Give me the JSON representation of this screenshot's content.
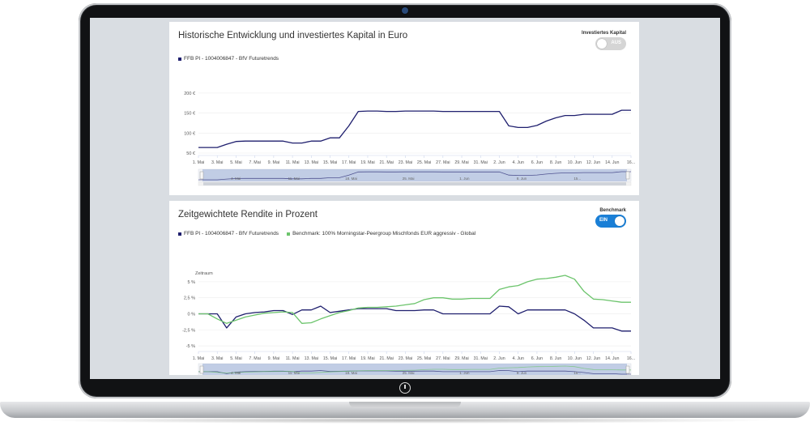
{
  "panel1": {
    "title": "Historische Entwicklung und investiertes Kapital in Euro",
    "legend": [
      {
        "label": "FFB PI - 1004006847 - BfV Futuretrends",
        "color": "#1f1f6e"
      }
    ],
    "toggle": {
      "label": "Investiertes Kapital",
      "state": "AUS"
    }
  },
  "panel2": {
    "title": "Zeitgewichtete Rendite in Prozent",
    "legend": [
      {
        "label": "FFB PI - 1004006847 - BfV Futuretrends",
        "color": "#1f1f6e"
      },
      {
        "label": "Benchmark: 100% Morningstar-Peergroup Mischfonds EUR aggressiv - Global",
        "color": "#6cc46c"
      }
    ],
    "toggle": {
      "label": "Benchmark",
      "state": "EIN"
    }
  },
  "chart_data": [
    {
      "type": "line",
      "title": "Historische Entwicklung und investiertes Kapital in Euro",
      "x": [
        "1. Mai",
        "2. Mai",
        "3. Mai",
        "4. Mai",
        "5. Mai",
        "6. Mai",
        "7. Mai",
        "8. Mai",
        "9. Mai",
        "10. Mai",
        "11. Mai",
        "12. Mai",
        "13. Mai",
        "14. Mai",
        "15. Mai",
        "16. Mai",
        "17. Mai",
        "18. Mai",
        "19. Mai",
        "20. Mai",
        "21. Mai",
        "22. Mai",
        "23. Mai",
        "24. Mai",
        "25. Mai",
        "26. Mai",
        "27. Mai",
        "28. Mai",
        "29. Mai",
        "30. Mai",
        "31. Mai",
        "1. Jun",
        "2. Jun",
        "3. Jun",
        "4. Jun",
        "5. Jun",
        "6. Jun",
        "7. Jun",
        "8. Jun",
        "9. Jun",
        "10. Jun",
        "11. Jun",
        "12. Jun",
        "13. Jun",
        "14. Jun",
        "15. Jun",
        "16. Jun"
      ],
      "series": [
        {
          "name": "FFB PI - 1004006847 - BfV Futuretrends",
          "color": "#1f1f6e",
          "values": [
            64,
            64,
            64,
            72,
            79,
            80,
            80,
            80,
            80,
            80,
            75,
            75,
            80,
            80,
            88,
            88,
            118,
            154,
            155,
            155,
            154,
            154,
            155,
            155,
            155,
            155,
            154,
            154,
            154,
            154,
            154,
            154,
            154,
            118,
            114,
            114,
            119,
            130,
            138,
            144,
            144,
            147,
            147,
            147,
            147,
            157,
            157
          ]
        }
      ],
      "y_ticks": [
        "50 €",
        "100 €",
        "150 €",
        "200 €"
      ],
      "y_tick_values": [
        50,
        100,
        150,
        200
      ],
      "x_tick_labels": [
        "1. Mai",
        "3. Mai",
        "5. Mai",
        "7. Mai",
        "9. Mai",
        "11. Mai",
        "13. Mai",
        "15. Mai",
        "17. Mai",
        "19. Mai",
        "21. Mai",
        "23. Mai",
        "25. Mai",
        "27. Mai",
        "29. Mai",
        "31. Mai",
        "2. Jun",
        "4. Jun",
        "6. Jun",
        "8. Jun",
        "10. Jun",
        "12. Jun",
        "14. Jun",
        "16..."
      ],
      "navigator_labels": [
        "4. Mai",
        "11. Mai",
        "18. Mai",
        "25. Mai",
        "1. Jun",
        "8. Jun",
        "15..."
      ],
      "ylim": [
        50,
        220
      ]
    },
    {
      "type": "line",
      "title": "Zeitgewichtete Rendite in Prozent",
      "ylabel": "Zeitraum",
      "x": [
        "1. Mai",
        "2. Mai",
        "3. Mai",
        "4. Mai",
        "5. Mai",
        "6. Mai",
        "7. Mai",
        "8. Mai",
        "9. Mai",
        "10. Mai",
        "11. Mai",
        "12. Mai",
        "13. Mai",
        "14. Mai",
        "15. Mai",
        "16. Mai",
        "17. Mai",
        "18. Mai",
        "19. Mai",
        "20. Mai",
        "21. Mai",
        "22. Mai",
        "23. Mai",
        "24. Mai",
        "25. Mai",
        "26. Mai",
        "27. Mai",
        "28. Mai",
        "29. Mai",
        "30. Mai",
        "31. Mai",
        "1. Jun",
        "2. Jun",
        "3. Jun",
        "4. Jun",
        "5. Jun",
        "6. Jun",
        "7. Jun",
        "8. Jun",
        "9. Jun",
        "10. Jun",
        "11. Jun",
        "12. Jun",
        "13. Jun",
        "14. Jun",
        "15. Jun",
        "16. Jun"
      ],
      "series": [
        {
          "name": "FFB PI - 1004006847 - BfV Futuretrends",
          "color": "#1f1f6e",
          "values": [
            0,
            0,
            0,
            -2.2,
            -0.5,
            0,
            0.2,
            0.3,
            0.5,
            0.5,
            -0.1,
            0.6,
            0.6,
            1.2,
            0.2,
            0.4,
            0.6,
            0.8,
            0.8,
            0.8,
            0.8,
            0.5,
            0.5,
            0.5,
            0.6,
            0.6,
            0,
            0,
            0,
            0,
            0,
            0,
            1.2,
            1.1,
            0,
            0.6,
            0.6,
            0.6,
            0.6,
            0.6,
            0,
            -1,
            -2.2,
            -2.2,
            -2.2,
            -2.7,
            -2.7
          ]
        },
        {
          "name": "Benchmark: 100% Morningstar-Peergroup Mischfonds EUR aggressiv - Global",
          "color": "#6cc46c",
          "values": [
            0,
            0,
            -0.8,
            -1.5,
            -1.0,
            -0.5,
            -0.2,
            0.1,
            0.2,
            0.3,
            0.2,
            -1.5,
            -1.4,
            -0.8,
            -0.3,
            0.2,
            0.5,
            0.9,
            1.0,
            1.0,
            1.1,
            1.2,
            1.4,
            1.6,
            2.2,
            2.5,
            2.5,
            2.3,
            2.3,
            2.4,
            2.4,
            2.4,
            3.8,
            4.2,
            4.4,
            5,
            5.4,
            5.5,
            5.7,
            6,
            5.4,
            3.5,
            2.3,
            2.2,
            2.0,
            1.8,
            1.8
          ]
        }
      ],
      "y_ticks": [
        "-5 %",
        "-2,5 %",
        "0 %",
        "2,5 %",
        "5 %"
      ],
      "y_tick_values": [
        -5,
        -2.5,
        0,
        2.5,
        5
      ],
      "x_tick_labels": [
        "1. Mai",
        "3. Mai",
        "5. Mai",
        "7. Mai",
        "9. Mai",
        "11. Mai",
        "13. Mai",
        "15. Mai",
        "17. Mai",
        "19. Mai",
        "21. Mai",
        "23. Mai",
        "25. Mai",
        "27. Mai",
        "29. Mai",
        "31. Mai",
        "2. Jun",
        "4. Jun",
        "6. Jun",
        "8. Jun",
        "10. Jun",
        "12. Jun",
        "14. Jun",
        "16..."
      ],
      "navigator_labels": [
        "4. Mai",
        "11. Mai",
        "18. Mai",
        "25. Mai",
        "1. Jun",
        "8. Jun",
        "15..."
      ],
      "ylim": [
        -5.5,
        6.5
      ]
    }
  ]
}
